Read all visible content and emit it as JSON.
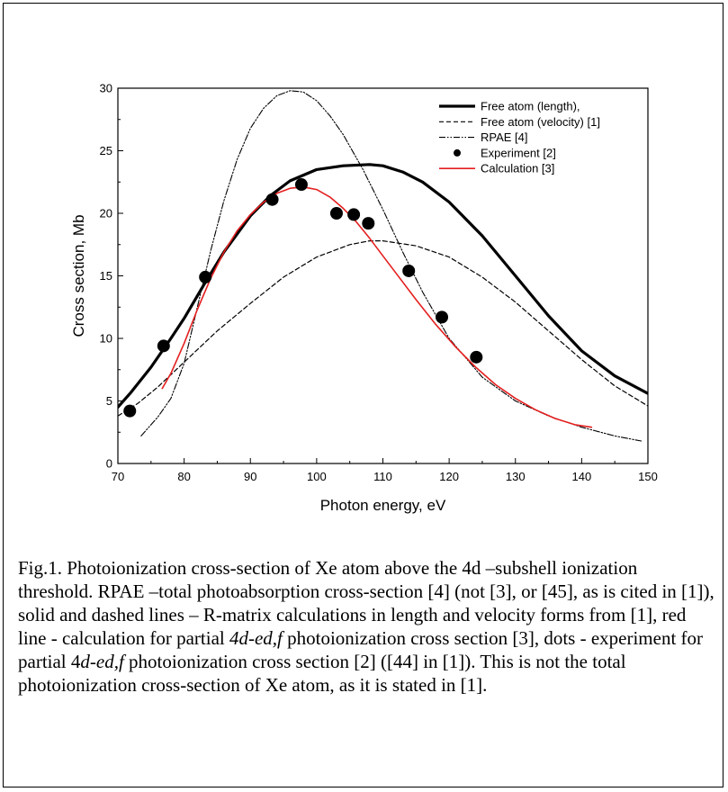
{
  "chart_data": {
    "type": "line",
    "xlabel": "Photon energy, eV",
    "ylabel": "Cross section, Mb",
    "xlim": [
      70,
      150
    ],
    "ylim": [
      0,
      30
    ],
    "xticks": [
      70,
      80,
      90,
      100,
      110,
      120,
      130,
      140,
      150
    ],
    "yticks": [
      0,
      5,
      10,
      15,
      20,
      25,
      30
    ],
    "grid": false,
    "legend_position": "top-right",
    "series": [
      {
        "name": "Free atom (length),",
        "style": "solid-thick",
        "color": "#000000",
        "x": [
          70,
          72,
          75,
          78,
          80,
          83,
          86,
          90,
          93,
          96,
          100,
          104,
          108,
          110,
          113,
          116,
          120,
          125,
          130,
          135,
          140,
          145,
          150
        ],
        "y": [
          4.5,
          5.7,
          7.7,
          10.0,
          11.6,
          14.3,
          16.9,
          19.8,
          21.4,
          22.6,
          23.5,
          23.8,
          23.9,
          23.8,
          23.3,
          22.5,
          20.9,
          18.2,
          15.0,
          11.8,
          9.0,
          7.0,
          5.6
        ]
      },
      {
        "name": "Free atom (velocity) [1]",
        "style": "dashed",
        "color": "#000000",
        "x": [
          70,
          73,
          76,
          80,
          85,
          90,
          95,
          100,
          105,
          108,
          110,
          115,
          120,
          125,
          130,
          135,
          140,
          145,
          150
        ],
        "y": [
          3.8,
          4.8,
          6.1,
          8.1,
          10.6,
          12.8,
          14.9,
          16.5,
          17.5,
          17.8,
          17.8,
          17.4,
          16.5,
          14.9,
          12.9,
          10.6,
          8.3,
          6.2,
          4.6
        ]
      },
      {
        "name": "RPAE [4]",
        "style": "dash-dot",
        "color": "#000000",
        "x": [
          73.5,
          76,
          78,
          80,
          82,
          84,
          86,
          88,
          90,
          92,
          94,
          96,
          98,
          100,
          102,
          104,
          107,
          110,
          113,
          116,
          120,
          125,
          130,
          135,
          140,
          145,
          149
        ],
        "y": [
          2.2,
          3.7,
          5.2,
          8.0,
          12.5,
          17.0,
          21.0,
          24.3,
          26.8,
          28.4,
          29.4,
          29.8,
          29.7,
          29.0,
          27.8,
          26.3,
          23.5,
          20.3,
          16.9,
          13.7,
          10.0,
          6.9,
          5.0,
          3.8,
          2.9,
          2.2,
          1.8
        ]
      },
      {
        "name": "Experiment [2]",
        "style": "dots",
        "color": "#000000",
        "x": [
          71.8,
          76.9,
          83.2,
          93.3,
          97.7,
          103.0,
          105.6,
          107.8,
          113.9,
          118.9,
          124.1
        ],
        "y": [
          4.2,
          9.4,
          14.9,
          21.1,
          22.3,
          20.0,
          19.9,
          19.2,
          15.4,
          11.7,
          8.5
        ]
      },
      {
        "name": "Calculation [3]",
        "style": "solid",
        "color": "#e41f1f",
        "x": [
          76.7,
          78,
          80,
          82,
          84,
          86,
          88,
          90,
          92,
          94,
          96,
          98,
          100,
          102,
          104,
          106,
          108,
          110,
          112,
          115,
          118,
          121,
          124,
          127,
          130,
          133,
          136,
          139,
          141.5
        ],
        "y": [
          6.0,
          7.2,
          9.6,
          12.3,
          14.8,
          16.9,
          18.6,
          19.9,
          20.9,
          21.6,
          22.0,
          22.1,
          21.9,
          21.3,
          20.4,
          19.3,
          18.0,
          16.6,
          15.2,
          13.1,
          11.1,
          9.3,
          7.7,
          6.3,
          5.2,
          4.3,
          3.6,
          3.1,
          2.9
        ]
      }
    ]
  },
  "caption": {
    "p1": "Fig.1. Photoionization cross-section of Xe atom above the 4d –subshell ionization threshold. RPAE –total photoabsorption cross-section [4] (not [3], or [45], as is cited in [1]), solid and dashed lines – R-matrix calculations in length and velocity forms from [1], red line - calculation for partial ",
    "it1": "4d-ed,f",
    "p2": " photoionization cross section [3], dots - experiment for partial 4",
    "it2": "d-ed,f",
    "p3": " photoionization cross section [2] ([44] in [1]). This is not the total photoionization cross-section of Xe atom, as it is stated in [1]."
  }
}
